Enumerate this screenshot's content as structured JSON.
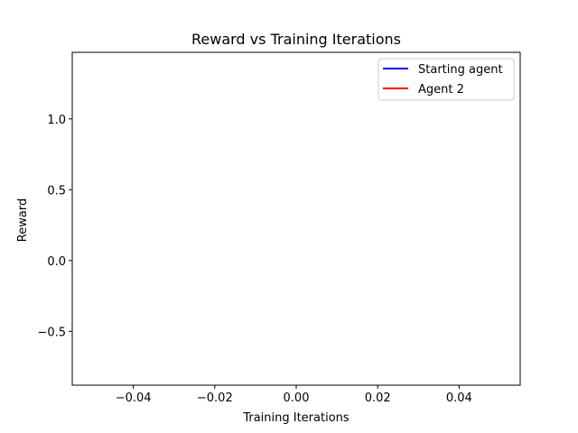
{
  "chart_data": {
    "type": "line",
    "title": "Reward vs Training Iterations",
    "xlabel": "Training Iterations",
    "ylabel": "Reward",
    "xlim": [
      -0.055,
      0.055
    ],
    "ylim": [
      -0.88,
      1.47
    ],
    "xticks": [
      -0.04,
      -0.02,
      0.0,
      0.02,
      0.04
    ],
    "xtick_labels": [
      "−0.04",
      "−0.02",
      "0.00",
      "0.02",
      "0.04"
    ],
    "yticks": [
      -0.5,
      0.0,
      0.5,
      1.0
    ],
    "ytick_labels": [
      "−0.5",
      "0.0",
      "0.5",
      "1.0"
    ],
    "grid": false,
    "legend_position": "upper right",
    "series": [
      {
        "name": "Starting agent",
        "color": "#0000ff",
        "x": [],
        "y": []
      },
      {
        "name": "Agent 2",
        "color": "#ff0000",
        "x": [],
        "y": []
      }
    ]
  }
}
